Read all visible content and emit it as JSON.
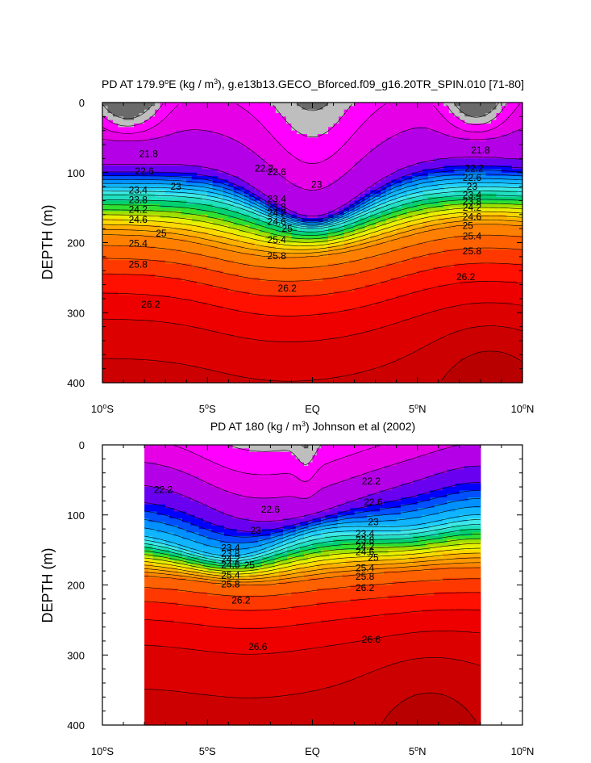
{
  "chart_data": [
    {
      "type": "contour",
      "title_prefix": "PD AT 179.9",
      "title_sup1": "o",
      "title_mid": "E (kg / m",
      "title_sup2": "3",
      "title_suffix": "), g.e13b13.GECO_Bforced.f09_g16.20TR_SPIN.010 [71-80]",
      "ylabel": "DEPTH (m)",
      "xlabel": "",
      "xlim": [
        -10,
        10
      ],
      "ylim": [
        400,
        0
      ],
      "data_range": [
        -10,
        10
      ],
      "x_ticks": [
        {
          "v": -10,
          "t": "10",
          "s": "o",
          "h": "S"
        },
        {
          "v": -5,
          "t": "5",
          "s": "o",
          "h": "S"
        },
        {
          "v": 0,
          "t": "EQ",
          "s": "",
          "h": ""
        },
        {
          "v": 5,
          "t": "5",
          "s": "o",
          "h": "N"
        },
        {
          "v": 10,
          "t": "10",
          "s": "o",
          "h": "N"
        }
      ],
      "y_ticks": [
        {
          "v": 0,
          "t": "0"
        },
        {
          "v": 100,
          "t": "100"
        },
        {
          "v": 200,
          "t": "200"
        },
        {
          "v": 300,
          "t": "300"
        },
        {
          "v": 400,
          "t": "400"
        }
      ],
      "contour_levels": [
        20.6,
        21.0,
        21.4,
        21.8,
        22.2,
        22.6,
        22.8,
        23.0,
        23.2,
        23.4,
        23.6,
        23.8,
        24.0,
        24.2,
        24.4,
        24.6,
        24.8,
        25.0,
        25.2,
        25.4,
        25.6,
        25.8,
        26.0,
        26.2,
        26.4,
        26.6,
        26.8
      ],
      "level_colors": [
        "#6a6a6a",
        "#bebebe",
        "#ff00ff",
        "#e600e6",
        "#b400e6",
        "#6a00f0",
        "#0000ff",
        "#0050ff",
        "#0090ff",
        "#10b4ff",
        "#20d0ff",
        "#40e8e8",
        "#20e0c0",
        "#00d070",
        "#30e030",
        "#a0e000",
        "#e8f000",
        "#ffd800",
        "#ffb000",
        "#ff9800",
        "#ff8000",
        "#ff6000",
        "#ff3800",
        "#ff1000",
        "#ee0000",
        "#dd0000",
        "#cc0000",
        "#b80000"
      ],
      "labels": [
        {
          "x": -7.8,
          "d": 73,
          "t": "21.8"
        },
        {
          "x": -2.3,
          "d": 94,
          "t": "22.2"
        },
        {
          "x": 8.0,
          "d": 68,
          "t": "21.8"
        },
        {
          "x": 7.7,
          "d": 94,
          "t": "22.2"
        },
        {
          "x": -8.0,
          "d": 98,
          "t": "22.6"
        },
        {
          "x": -1.7,
          "d": 99,
          "t": "22.6"
        },
        {
          "x": 7.6,
          "d": 107,
          "t": "22.6"
        },
        {
          "x": -6.5,
          "d": 120,
          "t": "23"
        },
        {
          "x": 0.2,
          "d": 117,
          "t": "23"
        },
        {
          "x": 7.6,
          "d": 120,
          "t": "23"
        },
        {
          "x": -8.3,
          "d": 125,
          "t": "23.4"
        },
        {
          "x": -1.7,
          "d": 138,
          "t": "23.4"
        },
        {
          "x": 7.6,
          "d": 132,
          "t": "23.4"
        },
        {
          "x": -8.3,
          "d": 139,
          "t": "23.8"
        },
        {
          "x": -1.7,
          "d": 149,
          "t": "23.8"
        },
        {
          "x": 7.6,
          "d": 141,
          "t": "23.8"
        },
        {
          "x": -8.3,
          "d": 153,
          "t": "24.2"
        },
        {
          "x": -1.7,
          "d": 158,
          "t": "24.2"
        },
        {
          "x": 7.6,
          "d": 150,
          "t": "24.2"
        },
        {
          "x": -8.3,
          "d": 167,
          "t": "24.6"
        },
        {
          "x": -1.7,
          "d": 170,
          "t": "24.6"
        },
        {
          "x": 7.6,
          "d": 163,
          "t": "24.6"
        },
        {
          "x": -7.2,
          "d": 187,
          "t": "25"
        },
        {
          "x": -1.2,
          "d": 180,
          "t": "25"
        },
        {
          "x": 7.4,
          "d": 176,
          "t": "25"
        },
        {
          "x": -8.3,
          "d": 201,
          "t": "25.4"
        },
        {
          "x": -1.7,
          "d": 196,
          "t": "25.4"
        },
        {
          "x": 7.6,
          "d": 191,
          "t": "25.4"
        },
        {
          "x": -8.3,
          "d": 231,
          "t": "25.8"
        },
        {
          "x": -1.7,
          "d": 219,
          "t": "25.8"
        },
        {
          "x": 7.6,
          "d": 212,
          "t": "25.8"
        },
        {
          "x": -7.7,
          "d": 288,
          "t": "26.2"
        },
        {
          "x": -1.2,
          "d": 265,
          "t": "26.2"
        },
        {
          "x": 7.3,
          "d": 249,
          "t": "26.2"
        }
      ],
      "field": {
        "kind": "model",
        "sampling": {
          "nx": 80,
          "ny": 80
        },
        "amplitudes": {
          "cold_tongue": 0.5,
          "west_gray": 0.6,
          "east_gray": 0.6,
          "east_deep": 0.25
        }
      }
    },
    {
      "type": "contour",
      "title_prefix": "PD AT 180 (kg / m",
      "title_sup1": "3",
      "title_mid": ") Johnson et al (2002)",
      "title_sup2": "",
      "title_suffix": "",
      "ylabel": "DEPTH (m)",
      "xlabel": "",
      "xlim": [
        -10,
        10
      ],
      "ylim": [
        400,
        0
      ],
      "data_range": [
        -8,
        8
      ],
      "x_ticks": [
        {
          "v": -10,
          "t": "10",
          "s": "o",
          "h": "S"
        },
        {
          "v": -5,
          "t": "5",
          "s": "o",
          "h": "S"
        },
        {
          "v": 0,
          "t": "EQ",
          "s": "",
          "h": ""
        },
        {
          "v": 5,
          "t": "5",
          "s": "o",
          "h": "N"
        },
        {
          "v": 10,
          "t": "10",
          "s": "o",
          "h": "N"
        }
      ],
      "y_ticks": [
        {
          "v": 0,
          "t": "0"
        },
        {
          "v": 100,
          "t": "100"
        },
        {
          "v": 200,
          "t": "200"
        },
        {
          "v": 300,
          "t": "300"
        },
        {
          "v": 400,
          "t": "400"
        }
      ],
      "contour_levels": [
        20.6,
        21.0,
        21.4,
        21.8,
        22.2,
        22.6,
        22.8,
        23.0,
        23.2,
        23.4,
        23.6,
        23.8,
        24.0,
        24.2,
        24.4,
        24.6,
        24.8,
        25.0,
        25.2,
        25.4,
        25.6,
        25.8,
        26.0,
        26.2,
        26.4,
        26.6,
        26.8
      ],
      "level_colors": [
        "#6a6a6a",
        "#bebebe",
        "#ff00ff",
        "#e600e6",
        "#b400e6",
        "#6a00f0",
        "#0000ff",
        "#0050ff",
        "#0090ff",
        "#10b4ff",
        "#20d0ff",
        "#40e8e8",
        "#20e0c0",
        "#00d070",
        "#30e030",
        "#a0e000",
        "#e8f000",
        "#ffd800",
        "#ffb000",
        "#ff9800",
        "#ff8000",
        "#ff6000",
        "#ff3800",
        "#ff1000",
        "#ee0000",
        "#dd0000",
        "#cc0000",
        "#b80000"
      ],
      "labels": [
        {
          "x": -7.1,
          "d": 64,
          "t": "22.2"
        },
        {
          "x": 2.8,
          "d": 52,
          "t": "22.2"
        },
        {
          "x": -2.0,
          "d": 92,
          "t": "22.6"
        },
        {
          "x": 2.9,
          "d": 82,
          "t": "22.6"
        },
        {
          "x": -2.7,
          "d": 122,
          "t": "23"
        },
        {
          "x": 2.9,
          "d": 110,
          "t": "23"
        },
        {
          "x": -3.9,
          "d": 147,
          "t": "23.4"
        },
        {
          "x": 2.5,
          "d": 127,
          "t": "23.4"
        },
        {
          "x": -3.9,
          "d": 155,
          "t": "23.8"
        },
        {
          "x": 2.5,
          "d": 136,
          "t": "23.8"
        },
        {
          "x": -3.9,
          "d": 163,
          "t": "24.2"
        },
        {
          "x": 2.5,
          "d": 145,
          "t": "24.2"
        },
        {
          "x": -3.9,
          "d": 171,
          "t": "24.6"
        },
        {
          "x": 2.5,
          "d": 153,
          "t": "24.6"
        },
        {
          "x": -3.0,
          "d": 172,
          "t": "25"
        },
        {
          "x": 2.9,
          "d": 161,
          "t": "25"
        },
        {
          "x": -3.9,
          "d": 186,
          "t": "25.4"
        },
        {
          "x": 2.5,
          "d": 176,
          "t": "25.4"
        },
        {
          "x": -3.9,
          "d": 199,
          "t": "25.8"
        },
        {
          "x": 2.5,
          "d": 188,
          "t": "25.8"
        },
        {
          "x": -3.4,
          "d": 222,
          "t": "26.2"
        },
        {
          "x": 2.5,
          "d": 204,
          "t": "26.2"
        },
        {
          "x": -2.6,
          "d": 288,
          "t": "26.6"
        },
        {
          "x": 2.8,
          "d": 278,
          "t": "26.6"
        }
      ],
      "field": {
        "kind": "observed",
        "sampling": {
          "nx": 80,
          "ny": 80
        },
        "amplitudes": {
          "spike": 0.45,
          "east_deep": 0.2
        }
      }
    }
  ]
}
